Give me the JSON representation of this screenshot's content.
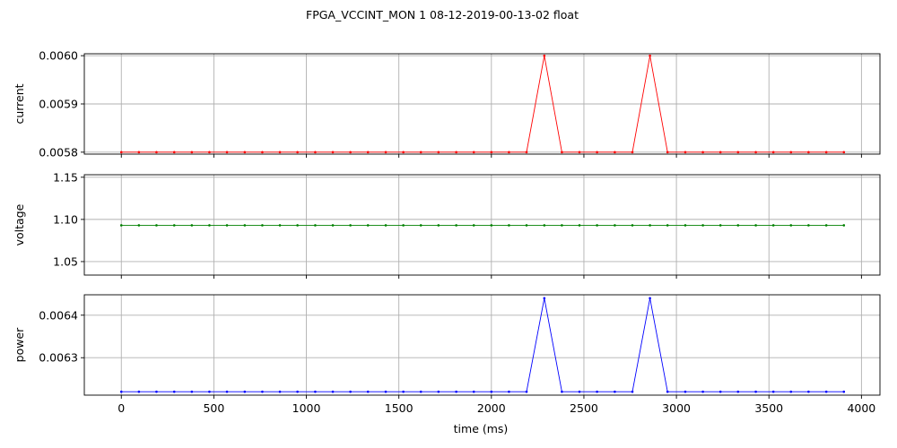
{
  "chart_data": {
    "type": "line",
    "title": "FPGA_VCCINT_MON   1   08-12-2019-00-13-02   float",
    "xlabel": "time (ms)",
    "xlim": [
      -200,
      4100
    ],
    "xticks": [
      0,
      500,
      1000,
      1500,
      2000,
      2500,
      3000,
      3500,
      4000
    ],
    "x": [
      0,
      95,
      190,
      286,
      381,
      476,
      571,
      667,
      762,
      857,
      952,
      1048,
      1143,
      1238,
      1333,
      1429,
      1524,
      1619,
      1714,
      1810,
      1905,
      2000,
      2095,
      2190,
      2286,
      2381,
      2476,
      2571,
      2667,
      2762,
      2857,
      2952,
      3048,
      3143,
      3238,
      3333,
      3429,
      3524,
      3619,
      3714,
      3810,
      3905
    ],
    "panels": [
      {
        "ylabel": "current",
        "color": "#ff0000",
        "ylim": [
          0.005796,
          0.006004
        ],
        "yticks": [
          0.0058,
          0.0059,
          0.006
        ],
        "ytick_labels": [
          "0.0058",
          "0.0059",
          "0.0060"
        ],
        "values": [
          0.0058,
          0.0058,
          0.0058,
          0.0058,
          0.0058,
          0.0058,
          0.0058,
          0.0058,
          0.0058,
          0.0058,
          0.0058,
          0.0058,
          0.0058,
          0.0058,
          0.0058,
          0.0058,
          0.0058,
          0.0058,
          0.0058,
          0.0058,
          0.0058,
          0.0058,
          0.0058,
          0.0058,
          0.006,
          0.0058,
          0.0058,
          0.0058,
          0.0058,
          0.0058,
          0.006,
          0.0058,
          0.0058,
          0.0058,
          0.0058,
          0.0058,
          0.0058,
          0.0058,
          0.0058,
          0.0058,
          0.0058,
          0.0058
        ]
      },
      {
        "ylabel": "voltage",
        "color": "#008000",
        "ylim": [
          1.034,
          1.153
        ],
        "yticks": [
          1.05,
          1.1,
          1.15
        ],
        "ytick_labels": [
          "1.05",
          "1.10",
          "1.15"
        ],
        "values": [
          1.093,
          1.093,
          1.093,
          1.093,
          1.093,
          1.093,
          1.093,
          1.093,
          1.093,
          1.093,
          1.093,
          1.093,
          1.093,
          1.093,
          1.093,
          1.093,
          1.093,
          1.093,
          1.093,
          1.093,
          1.093,
          1.093,
          1.093,
          1.093,
          1.093,
          1.093,
          1.093,
          1.093,
          1.093,
          1.093,
          1.093,
          1.093,
          1.093,
          1.093,
          1.093,
          1.093,
          1.093,
          1.093,
          1.093,
          1.093,
          1.093,
          1.093
        ]
      },
      {
        "ylabel": "power",
        "color": "#0000ff",
        "ylim": [
          0.006212,
          0.006448
        ],
        "yticks": [
          0.0063,
          0.0064
        ],
        "ytick_labels": [
          "0.0063",
          "0.0064"
        ],
        "values": [
          0.00622,
          0.00622,
          0.00622,
          0.00622,
          0.00622,
          0.00622,
          0.00622,
          0.00622,
          0.00622,
          0.00622,
          0.00622,
          0.00622,
          0.00622,
          0.00622,
          0.00622,
          0.00622,
          0.00622,
          0.00622,
          0.00622,
          0.00622,
          0.00622,
          0.00622,
          0.00622,
          0.00622,
          0.00644,
          0.00622,
          0.00622,
          0.00622,
          0.00622,
          0.00622,
          0.00644,
          0.00622,
          0.00622,
          0.00622,
          0.00622,
          0.00622,
          0.00622,
          0.00622,
          0.00622,
          0.00622,
          0.00622,
          0.00622
        ]
      }
    ],
    "grid": true,
    "legend": "none"
  }
}
